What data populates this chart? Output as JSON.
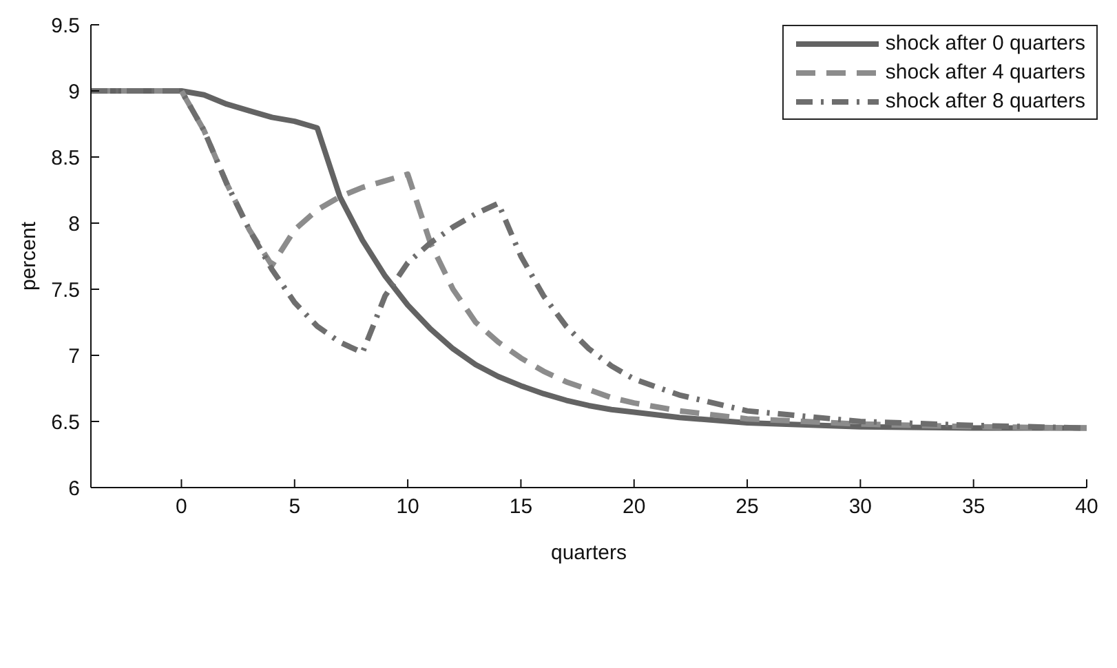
{
  "chart_data": {
    "type": "line",
    "xlabel": "quarters",
    "ylabel": "percent",
    "xlim": [
      -4,
      40
    ],
    "ylim": [
      6,
      9.5
    ],
    "xticks": [
      0,
      5,
      10,
      15,
      20,
      25,
      30,
      35,
      40
    ],
    "yticks": [
      6,
      6.5,
      7,
      7.5,
      8,
      8.5,
      9,
      9.5
    ],
    "grid": false,
    "legend": "top right",
    "marker": "none",
    "series": [
      {
        "name": "shock after 0 quarters",
        "color": "#636363",
        "line_style": "solid",
        "x": [
          -4,
          -3,
          -2,
          -1,
          0,
          1,
          2,
          3,
          4,
          5,
          6,
          7,
          8,
          9,
          10,
          11,
          12,
          13,
          14,
          15,
          16,
          17,
          18,
          19,
          20,
          22,
          25,
          30,
          35,
          40
        ],
        "values": [
          9,
          9,
          9,
          9,
          9,
          8.97,
          8.9,
          8.85,
          8.8,
          8.77,
          8.72,
          8.2,
          7.87,
          7.6,
          7.38,
          7.2,
          7.05,
          6.93,
          6.84,
          6.77,
          6.71,
          6.66,
          6.62,
          6.59,
          6.57,
          6.53,
          6.49,
          6.46,
          6.45,
          6.45
        ]
      },
      {
        "name": "shock after 4 quarters",
        "color": "#8c8c8c",
        "line_style": "dashed",
        "x": [
          -4,
          -3,
          -2,
          -1,
          0,
          1,
          2,
          3,
          4,
          5,
          6,
          7,
          8,
          9,
          10,
          11,
          12,
          13,
          14,
          15,
          16,
          17,
          18,
          19,
          20,
          22,
          25,
          30,
          35,
          40
        ],
        "values": [
          9,
          9,
          9,
          9,
          9,
          8.7,
          8.3,
          7.95,
          7.68,
          7.95,
          8.1,
          8.2,
          8.27,
          8.32,
          8.37,
          7.85,
          7.5,
          7.25,
          7.1,
          6.98,
          6.88,
          6.8,
          6.74,
          6.68,
          6.64,
          6.58,
          6.52,
          6.48,
          6.46,
          6.45
        ]
      },
      {
        "name": "shock after 8 quarters",
        "color": "#6e6e6e",
        "line_style": "dashdot",
        "x": [
          -4,
          -3,
          -2,
          -1,
          0,
          1,
          2,
          3,
          4,
          5,
          6,
          7,
          8,
          9,
          10,
          11,
          12,
          13,
          14,
          15,
          16,
          17,
          18,
          19,
          20,
          22,
          25,
          30,
          35,
          40
        ],
        "values": [
          9,
          9,
          9,
          9,
          9,
          8.7,
          8.3,
          7.95,
          7.65,
          7.4,
          7.22,
          7.1,
          7.02,
          7.45,
          7.7,
          7.85,
          7.97,
          8.07,
          8.15,
          7.75,
          7.45,
          7.22,
          7.05,
          6.92,
          6.82,
          6.7,
          6.58,
          6.5,
          6.47,
          6.45
        ]
      }
    ]
  }
}
